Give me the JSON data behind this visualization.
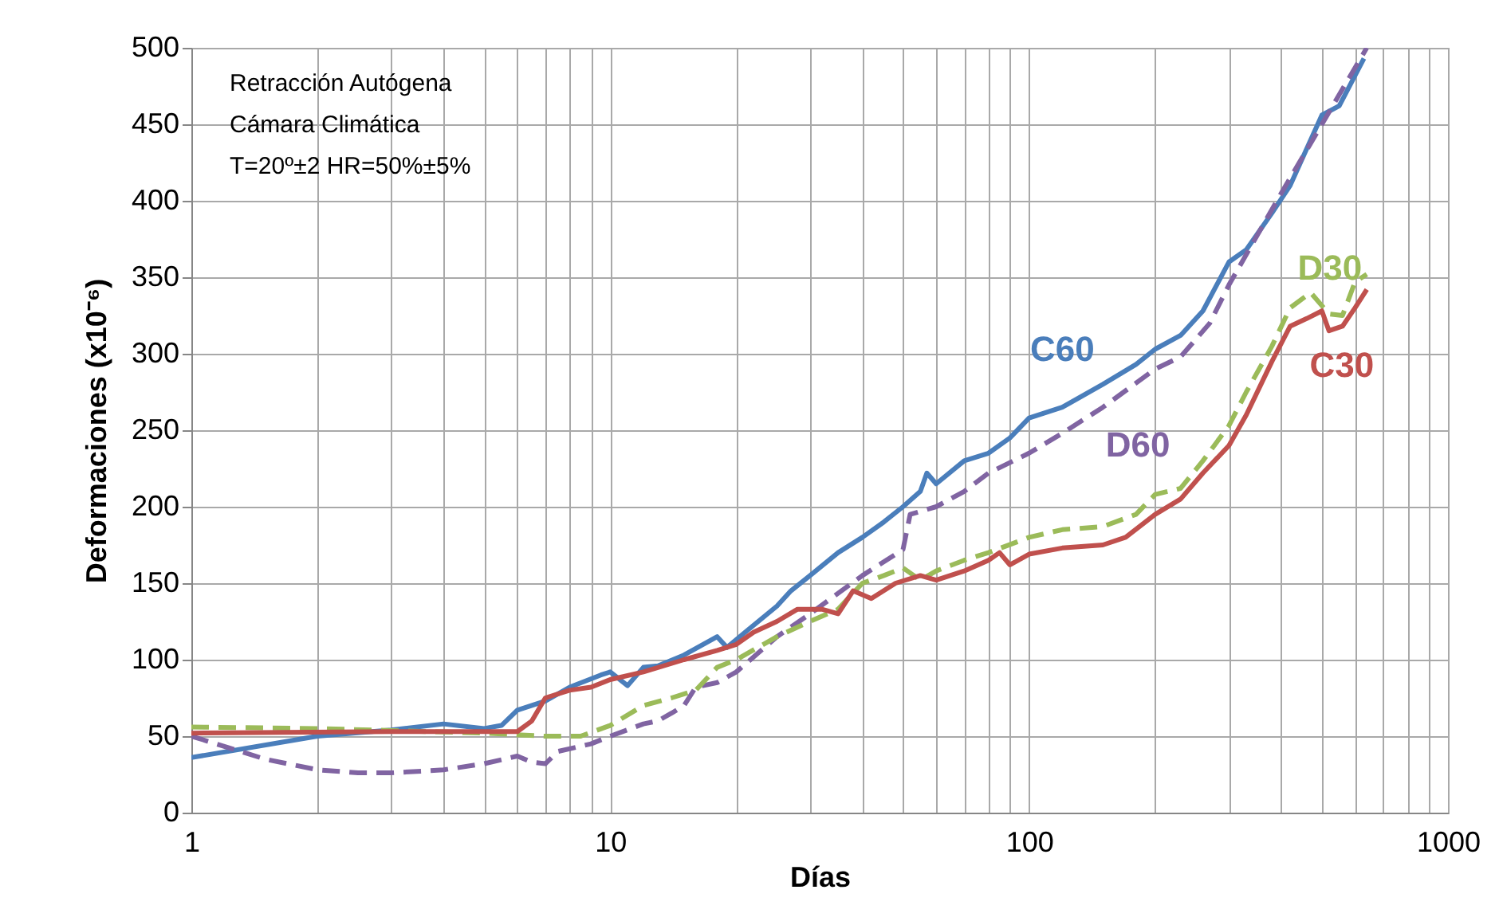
{
  "chart_data": {
    "type": "line",
    "xlabel": "Días",
    "ylabel": "Deformaciones (x10⁻⁶)",
    "annotations": [
      "Retracción Autógena",
      "Cámara Climática",
      "T=20º±2  HR=50%±5%"
    ],
    "log": "x",
    "grid": true,
    "legend": false,
    "xlim": [
      1,
      1000
    ],
    "ylim": [
      0,
      500
    ],
    "xticks": [
      1,
      {
        "value": 2,
        "label": null
      },
      {
        "value": 3,
        "label": null
      },
      {
        "value": 4,
        "label": null
      },
      {
        "value": 5,
        "label": null
      },
      {
        "value": 6,
        "label": null
      },
      {
        "value": 7,
        "label": null
      },
      {
        "value": 8,
        "label": null
      },
      {
        "value": 9,
        "label": null
      },
      10,
      {
        "value": 20,
        "label": null
      },
      {
        "value": 30,
        "label": null
      },
      {
        "value": 40,
        "label": null
      },
      {
        "value": 50,
        "label": null
      },
      {
        "value": 60,
        "label": null
      },
      {
        "value": 70,
        "label": null
      },
      {
        "value": 80,
        "label": null
      },
      {
        "value": 90,
        "label": null
      },
      100,
      {
        "value": 200,
        "label": null
      },
      {
        "value": 300,
        "label": null
      },
      {
        "value": 400,
        "label": null
      },
      {
        "value": 500,
        "label": null
      },
      {
        "value": 600,
        "label": null
      },
      {
        "value": 700,
        "label": null
      },
      {
        "value": 800,
        "label": null
      },
      {
        "value": 900,
        "label": null
      },
      1000
    ],
    "yticks": [
      0,
      50,
      100,
      150,
      200,
      250,
      300,
      350,
      400,
      450,
      500
    ],
    "series": [
      {
        "name": "C60",
        "color": "#4a7ebb",
        "line_style": "solid",
        "x": [
          1,
          2,
          3,
          4,
          5,
          5.5,
          6,
          7,
          8,
          9.5,
          10,
          11,
          12,
          13,
          15,
          18,
          19,
          21,
          25,
          27,
          30,
          35,
          40,
          45,
          50,
          55,
          57,
          60,
          70,
          80,
          90,
          100,
          120,
          150,
          180,
          200,
          230,
          260,
          300,
          330,
          380,
          420,
          500,
          550,
          630
        ],
        "values": [
          36,
          50,
          54,
          58,
          55,
          57,
          67,
          73,
          82,
          90,
          92,
          83,
          95,
          96,
          103,
          115,
          108,
          118,
          135,
          145,
          155,
          170,
          180,
          190,
          200,
          210,
          222,
          215,
          230,
          235,
          245,
          258,
          265,
          280,
          293,
          303,
          312,
          328,
          360,
          368,
          392,
          410,
          456,
          462,
          493
        ]
      },
      {
        "name": "D60",
        "color": "#8064a2",
        "line_style": "dashed",
        "x": [
          1,
          1.5,
          2,
          2.5,
          3,
          4,
          5,
          6,
          6.5,
          7,
          7.5,
          9,
          10,
          12,
          13,
          14,
          15,
          16,
          18,
          20,
          25,
          30,
          40,
          50,
          52,
          60,
          70,
          80,
          100,
          120,
          150,
          200,
          230,
          270,
          300,
          400,
          500,
          640
        ],
        "values": [
          50,
          35,
          28,
          26,
          26,
          28,
          32,
          37,
          33,
          32,
          40,
          45,
          50,
          58,
          60,
          65,
          70,
          82,
          85,
          92,
          115,
          130,
          155,
          172,
          195,
          200,
          210,
          222,
          235,
          248,
          265,
          290,
          298,
          320,
          345,
          405,
          450,
          500
        ]
      },
      {
        "name": "D30",
        "color": "#9bbb59",
        "line_style": "dashed",
        "x": [
          1,
          2,
          5,
          7,
          8.5,
          10,
          12,
          14,
          16,
          18,
          20,
          25,
          30,
          35,
          40,
          45,
          50,
          55,
          60,
          70,
          80,
          100,
          120,
          150,
          180,
          200,
          230,
          260,
          300,
          330,
          380,
          420,
          470,
          520,
          560,
          600,
          640
        ],
        "values": [
          56,
          55,
          52,
          50,
          50,
          57,
          70,
          75,
          80,
          95,
          100,
          115,
          125,
          133,
          150,
          155,
          160,
          152,
          158,
          165,
          170,
          180,
          185,
          187,
          195,
          208,
          212,
          230,
          253,
          275,
          305,
          330,
          340,
          326,
          325,
          347,
          352
        ]
      },
      {
        "name": "C30",
        "color": "#c0504d",
        "line_style": "solid",
        "x": [
          1,
          3,
          5,
          6,
          6.5,
          7,
          8,
          9,
          10,
          12,
          15,
          18,
          20,
          22,
          25,
          28,
          32,
          35,
          38,
          42,
          48,
          55,
          60,
          70,
          80,
          85,
          90,
          100,
          120,
          150,
          170,
          200,
          230,
          260,
          300,
          330,
          380,
          420,
          460,
          500,
          520,
          560,
          600,
          640
        ],
        "values": [
          52,
          53,
          53,
          53,
          60,
          75,
          80,
          82,
          87,
          92,
          100,
          106,
          110,
          118,
          125,
          133,
          133,
          130,
          145,
          140,
          150,
          155,
          152,
          158,
          165,
          170,
          162,
          169,
          173,
          175,
          180,
          195,
          205,
          222,
          240,
          260,
          295,
          318,
          323,
          328,
          315,
          318,
          330,
          342
        ]
      }
    ]
  }
}
